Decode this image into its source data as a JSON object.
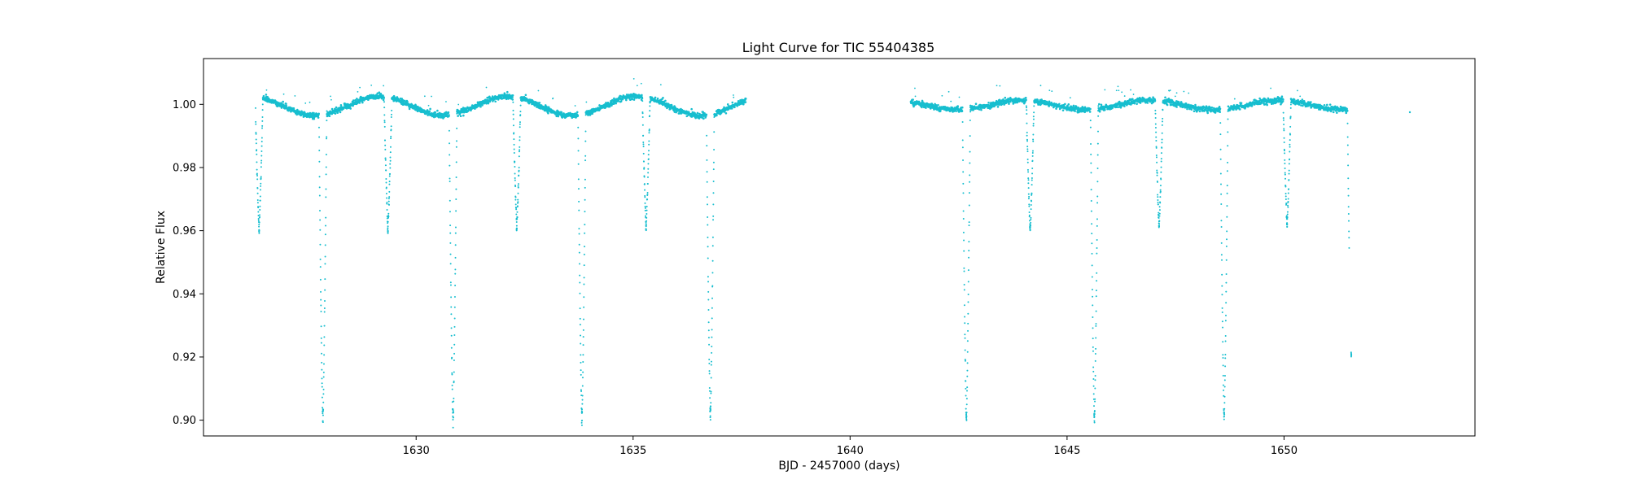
{
  "chart_data": {
    "type": "scatter",
    "title": "Light Curve for TIC 55404385",
    "xlabel": "BJD - 2457000 (days)",
    "ylabel": "Relative Flux",
    "xlim": [
      1625.1,
      1654.4
    ],
    "ylim": [
      0.895,
      1.0145
    ],
    "xticks": [
      1630,
      1635,
      1640,
      1645,
      1650
    ],
    "yticks": [
      0.9,
      0.92,
      0.94,
      0.96,
      0.98,
      1.0
    ],
    "grid": false,
    "legend": "none",
    "marker_color": "#17becf",
    "data_gap": [
      1637.6,
      1641.4
    ],
    "segments": [
      [
        1626.3,
        1637.6
      ],
      [
        1641.4,
        1651.5
      ]
    ],
    "isolated_point": [
      1652.9,
      0.9975
    ],
    "primary_eclipses": [
      {
        "x": 1627.85,
        "min_flux": 0.902
      },
      {
        "x": 1630.85,
        "min_flux": 0.902
      },
      {
        "x": 1633.82,
        "min_flux": 0.902
      },
      {
        "x": 1636.78,
        "min_flux": 0.903
      },
      {
        "x": 1642.68,
        "min_flux": 0.901
      },
      {
        "x": 1645.63,
        "min_flux": 0.901
      },
      {
        "x": 1648.62,
        "min_flux": 0.901
      },
      {
        "x": 1651.55,
        "min_flux": 0.92
      }
    ],
    "secondary_eclipses": [
      {
        "x": 1626.38,
        "min_flux": 0.959
      },
      {
        "x": 1629.35,
        "min_flux": 0.959
      },
      {
        "x": 1632.32,
        "min_flux": 0.96
      },
      {
        "x": 1635.3,
        "min_flux": 0.96
      },
      {
        "x": 1644.15,
        "min_flux": 0.96
      },
      {
        "x": 1647.12,
        "min_flux": 0.961
      },
      {
        "x": 1650.07,
        "min_flux": 0.961
      }
    ]
  }
}
